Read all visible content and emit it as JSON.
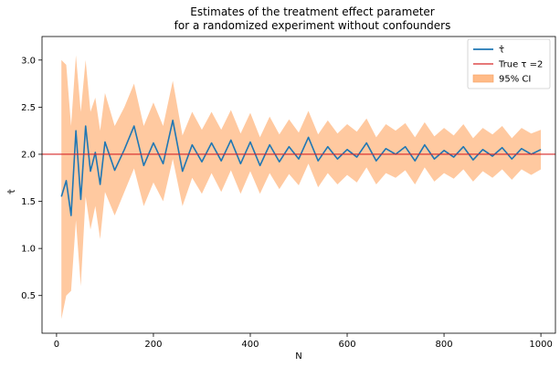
{
  "chart_data": {
    "type": "line",
    "title": "Estimates of the treatment effect parameter",
    "subtitle": "for a randomized experiment without confounders",
    "xlabel": "N",
    "ylabel": "τ̂",
    "xlim": [
      -30,
      1030
    ],
    "ylim": [
      0.1,
      3.25
    ],
    "x_ticks": [
      0,
      200,
      400,
      600,
      800,
      1000
    ],
    "x_tick_labels": [
      "0",
      "200",
      "400",
      "600",
      "800",
      "1000"
    ],
    "y_ticks": [
      0.5,
      1.0,
      1.5,
      2.0,
      2.5,
      3.0
    ],
    "y_tick_labels": [
      "0.5",
      "1.0",
      "1.5",
      "2.0",
      "2.5",
      "3.0"
    ],
    "grid": false,
    "legend_position": "top-right",
    "legend": [
      {
        "label": "τ̂",
        "kind": "line",
        "color": "#1f77b4"
      },
      {
        "label": "True τ =2",
        "kind": "line",
        "color": "#d62728"
      },
      {
        "label": "95% CI",
        "kind": "patch",
        "color": "#ffbb88"
      }
    ],
    "series": [
      {
        "name": "τ̂",
        "color": "#1f77b4",
        "x": [
          10,
          20,
          30,
          40,
          50,
          60,
          70,
          80,
          90,
          100,
          120,
          140,
          160,
          180,
          200,
          220,
          240,
          260,
          280,
          300,
          320,
          340,
          360,
          380,
          400,
          420,
          440,
          460,
          480,
          500,
          520,
          540,
          560,
          580,
          600,
          620,
          640,
          660,
          680,
          700,
          720,
          740,
          760,
          780,
          800,
          820,
          840,
          860,
          880,
          900,
          920,
          940,
          960,
          980,
          1000
        ],
        "y": [
          1.55,
          1.72,
          1.35,
          2.25,
          1.52,
          2.3,
          1.82,
          2.02,
          1.68,
          2.13,
          1.83,
          2.05,
          2.3,
          1.88,
          2.12,
          1.9,
          2.36,
          1.82,
          2.1,
          1.92,
          2.12,
          1.93,
          2.15,
          1.9,
          2.13,
          1.88,
          2.1,
          1.92,
          2.08,
          1.95,
          2.18,
          1.93,
          2.08,
          1.95,
          2.05,
          1.97,
          2.12,
          1.93,
          2.06,
          2.0,
          2.08,
          1.93,
          2.1,
          1.95,
          2.04,
          1.97,
          2.08,
          1.94,
          2.05,
          1.98,
          2.07,
          1.95,
          2.06,
          2.0,
          2.05
        ]
      },
      {
        "name": "True τ =2",
        "color": "#d62728",
        "y_constant": 2.0
      },
      {
        "name": "95% CI",
        "color": "#ffbb88",
        "x": [
          10,
          20,
          30,
          40,
          50,
          60,
          70,
          80,
          90,
          100,
          120,
          140,
          160,
          180,
          200,
          220,
          240,
          260,
          280,
          300,
          320,
          340,
          360,
          380,
          400,
          420,
          440,
          460,
          480,
          500,
          520,
          540,
          560,
          580,
          600,
          620,
          640,
          660,
          680,
          700,
          720,
          740,
          760,
          780,
          800,
          820,
          840,
          860,
          880,
          900,
          920,
          940,
          960,
          980,
          1000
        ],
        "lower": [
          0.25,
          0.5,
          0.55,
          1.3,
          0.6,
          1.55,
          1.2,
          1.45,
          1.1,
          1.6,
          1.35,
          1.6,
          1.85,
          1.45,
          1.7,
          1.5,
          1.95,
          1.45,
          1.75,
          1.58,
          1.8,
          1.6,
          1.83,
          1.58,
          1.82,
          1.58,
          1.8,
          1.63,
          1.79,
          1.67,
          1.9,
          1.65,
          1.8,
          1.68,
          1.78,
          1.7,
          1.86,
          1.68,
          1.8,
          1.75,
          1.83,
          1.68,
          1.86,
          1.71,
          1.8,
          1.74,
          1.84,
          1.71,
          1.82,
          1.75,
          1.84,
          1.73,
          1.84,
          1.78,
          1.84
        ],
        "upper": [
          3.0,
          2.95,
          2.3,
          3.05,
          2.45,
          3.0,
          2.45,
          2.6,
          2.25,
          2.65,
          2.3,
          2.5,
          2.75,
          2.3,
          2.55,
          2.3,
          2.78,
          2.2,
          2.45,
          2.26,
          2.45,
          2.26,
          2.47,
          2.22,
          2.44,
          2.18,
          2.4,
          2.21,
          2.37,
          2.23,
          2.46,
          2.21,
          2.36,
          2.22,
          2.32,
          2.24,
          2.38,
          2.18,
          2.32,
          2.25,
          2.33,
          2.18,
          2.34,
          2.19,
          2.28,
          2.2,
          2.32,
          2.17,
          2.28,
          2.21,
          2.3,
          2.17,
          2.28,
          2.22,
          2.26
        ]
      }
    ]
  }
}
